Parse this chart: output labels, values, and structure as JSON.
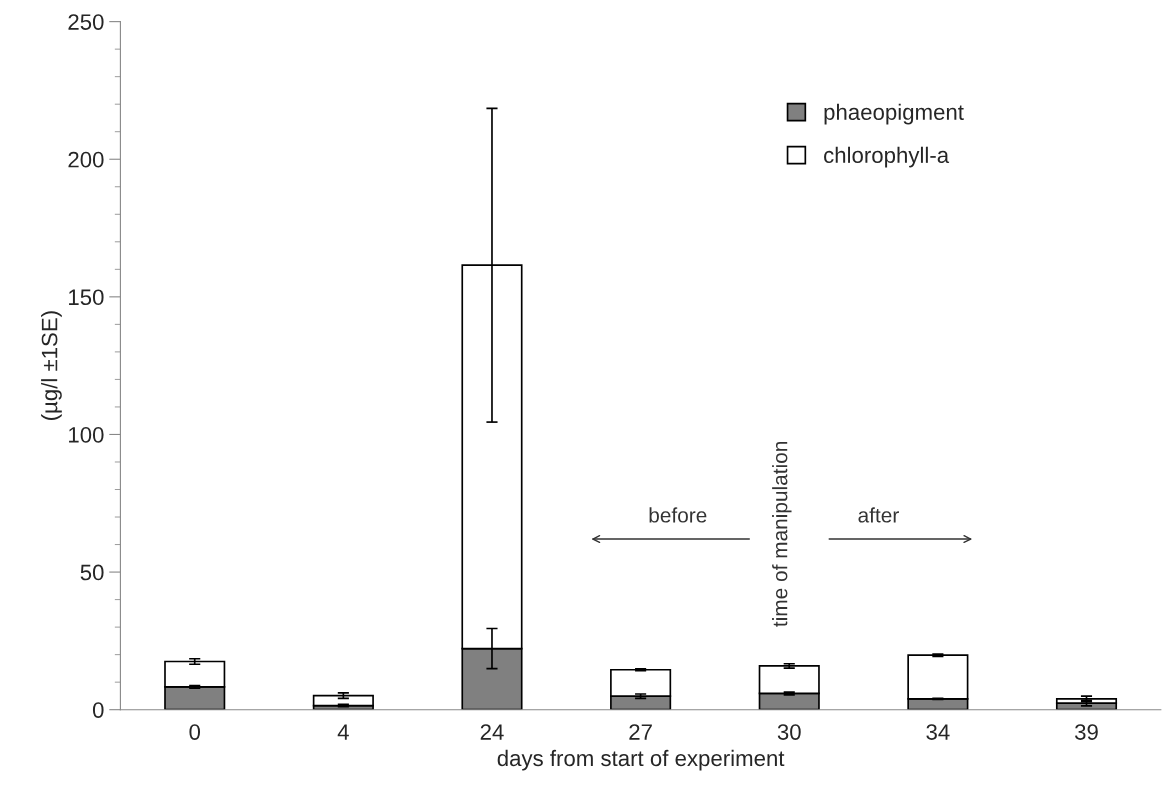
{
  "chart_data": {
    "type": "bar",
    "stacked": true,
    "xlabel": "days from start of experiment",
    "ylabel": "(µg/l ±1SE)",
    "categories": [
      "0",
      "4",
      "24",
      "27",
      "30",
      "34",
      "39"
    ],
    "series": [
      {
        "name": "phaeopigment",
        "color": "#808080",
        "values": [
          8.3,
          1.5,
          22.2,
          4.9,
          5.9,
          3.9,
          2.4
        ],
        "errors": [
          0.5,
          0.4,
          7.3,
          0.8,
          0.5,
          0.2,
          1
        ]
      },
      {
        "name": "chlorophyll-a",
        "color": "#ffffff",
        "values": [
          9.2,
          3.6,
          139.3,
          9.6,
          10,
          15.9,
          1.5
        ],
        "errors": [
          1,
          1,
          57,
          0.3,
          0.8,
          0.4,
          1
        ]
      }
    ],
    "ylim": [
      0,
      250
    ],
    "yticks": [
      0,
      {
        "value": 10,
        "label": null
      },
      {
        "value": 20,
        "label": null
      },
      {
        "value": 30,
        "label": null
      },
      {
        "value": 40,
        "label": null
      },
      50,
      {
        "value": 60,
        "label": null
      },
      {
        "value": 70,
        "label": null
      },
      {
        "value": 80,
        "label": null
      },
      {
        "value": 90,
        "label": null
      },
      100,
      {
        "value": 110,
        "label": null
      },
      {
        "value": 120,
        "label": null
      },
      {
        "value": 130,
        "label": null
      },
      {
        "value": 140,
        "label": null
      },
      150,
      {
        "value": 160,
        "label": null
      },
      {
        "value": 170,
        "label": null
      },
      {
        "value": 180,
        "label": null
      },
      {
        "value": 190,
        "label": null
      },
      200,
      {
        "value": 210,
        "label": null
      },
      {
        "value": 220,
        "label": null
      },
      {
        "value": 230,
        "label": null
      },
      {
        "value": 240,
        "label": null
      },
      250
    ],
    "annotations": [
      "before",
      "after",
      "time of manipulation"
    ],
    "legend": "top right",
    "grid": false
  }
}
